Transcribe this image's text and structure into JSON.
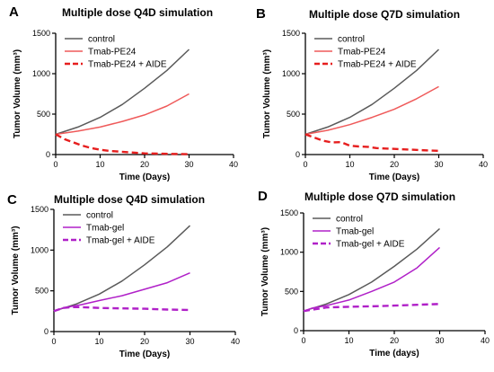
{
  "chart_data": [
    {
      "type": "line",
      "panel": "A",
      "title": "Multiple dose Q4D simulation",
      "xlabel": "Time (Days)",
      "ylabel": "Tumor Volume (mm³)",
      "xlim": [
        0,
        40
      ],
      "ylim": [
        0,
        1500
      ],
      "xticks": [
        "0",
        "10",
        "20",
        "30",
        "40"
      ],
      "yticks": [
        "0",
        "500",
        "1000",
        "1500"
      ],
      "grid": false,
      "legend": "top-left",
      "series": [
        {
          "name": "control",
          "color": "#5a5a5a",
          "dash": "solid",
          "x": [
            0,
            5,
            10,
            15,
            20,
            25,
            30
          ],
          "y": [
            250,
            340,
            460,
            620,
            820,
            1040,
            1300
          ]
        },
        {
          "name": "Tmab-PE24",
          "color": "#ef5a5a",
          "dash": "solid",
          "x": [
            0,
            5,
            10,
            15,
            20,
            25,
            30
          ],
          "y": [
            250,
            290,
            340,
            410,
            490,
            600,
            750
          ]
        },
        {
          "name": "Tmab-PE24 + AIDE",
          "color": "#e61e1e",
          "dash": "dashed",
          "x": [
            0,
            2,
            4,
            6,
            8,
            10,
            12,
            16,
            20,
            24,
            30
          ],
          "y": [
            250,
            190,
            150,
            110,
            80,
            60,
            45,
            30,
            15,
            10,
            5
          ]
        }
      ]
    },
    {
      "type": "line",
      "panel": "B",
      "title": "Multiple dose Q7D simulation",
      "xlabel": "Time (Days)",
      "ylabel": "Tumor Volume (mm³)",
      "xlim": [
        0,
        40
      ],
      "ylim": [
        0,
        1500
      ],
      "xticks": [
        "0",
        "10",
        "20",
        "30",
        "40"
      ],
      "yticks": [
        "0",
        "500",
        "1000",
        "1500"
      ],
      "grid": false,
      "legend": "top-left",
      "series": [
        {
          "name": "control",
          "color": "#5a5a5a",
          "dash": "solid",
          "x": [
            0,
            5,
            10,
            15,
            20,
            25,
            30
          ],
          "y": [
            250,
            340,
            460,
            620,
            820,
            1040,
            1300
          ]
        },
        {
          "name": "Tmab-PE24",
          "color": "#ef5a5a",
          "dash": "solid",
          "x": [
            0,
            5,
            10,
            15,
            20,
            25,
            30
          ],
          "y": [
            250,
            300,
            370,
            460,
            560,
            690,
            840
          ]
        },
        {
          "name": "Tmab-PE24 + AIDE",
          "color": "#e61e1e",
          "dash": "dashed",
          "x": [
            0,
            2,
            4,
            6,
            8,
            10,
            12,
            14,
            16,
            18,
            20,
            22,
            24,
            26,
            28,
            30
          ],
          "y": [
            250,
            210,
            170,
            150,
            155,
            110,
            100,
            95,
            80,
            75,
            70,
            65,
            60,
            55,
            50,
            45
          ]
        }
      ]
    },
    {
      "type": "line",
      "panel": "C",
      "title": "Multiple dose Q4D simulation",
      "xlabel": "Time (Days)",
      "ylabel": "Tumor Volume (mm³)",
      "xlim": [
        0,
        40
      ],
      "ylim": [
        0,
        1500
      ],
      "xticks": [
        "0",
        "10",
        "20",
        "30",
        "40"
      ],
      "yticks": [
        "0",
        "500",
        "1000",
        "1500"
      ],
      "grid": false,
      "legend": "top-left",
      "series": [
        {
          "name": "control",
          "color": "#5a5a5a",
          "dash": "solid",
          "x": [
            0,
            5,
            10,
            15,
            20,
            25,
            30
          ],
          "y": [
            250,
            340,
            460,
            620,
            820,
            1040,
            1300
          ]
        },
        {
          "name": "Tmab-gel",
          "color": "#b020c8",
          "dash": "solid",
          "x": [
            0,
            2,
            4,
            6,
            10,
            15,
            20,
            25,
            30
          ],
          "y": [
            250,
            290,
            310,
            330,
            380,
            440,
            520,
            600,
            720
          ]
        },
        {
          "name": "Tmab-gel + AIDE",
          "color": "#b020c8",
          "dash": "dashed",
          "x": [
            0,
            2,
            4,
            6,
            10,
            15,
            20,
            25,
            30
          ],
          "y": [
            250,
            290,
            300,
            300,
            290,
            285,
            280,
            270,
            265
          ]
        }
      ]
    },
    {
      "type": "line",
      "panel": "D",
      "title": "Multiple dose Q7D simulation",
      "xlabel": "Time (days)",
      "ylabel": "Tumor Volume (mm³)",
      "xlim": [
        0,
        40
      ],
      "ylim": [
        0,
        1500
      ],
      "xticks": [
        "0",
        "10",
        "20",
        "30",
        "40"
      ],
      "yticks": [
        "0",
        "500",
        "1000",
        "1500"
      ],
      "grid": false,
      "legend": "top-left",
      "series": [
        {
          "name": "control",
          "color": "#5a5a5a",
          "dash": "solid",
          "x": [
            0,
            5,
            10,
            15,
            20,
            25,
            30
          ],
          "y": [
            250,
            340,
            460,
            620,
            820,
            1040,
            1300
          ]
        },
        {
          "name": "Tmab-gel",
          "color": "#b020c8",
          "dash": "solid",
          "x": [
            0,
            2,
            5,
            10,
            15,
            20,
            25,
            30
          ],
          "y": [
            250,
            290,
            320,
            390,
            500,
            620,
            800,
            1060
          ]
        },
        {
          "name": "Tmab-gel + AIDE",
          "color": "#b020c8",
          "dash": "dashed",
          "x": [
            0,
            5,
            10,
            15,
            20,
            25,
            30
          ],
          "y": [
            250,
            295,
            305,
            310,
            320,
            330,
            340
          ]
        }
      ]
    }
  ]
}
